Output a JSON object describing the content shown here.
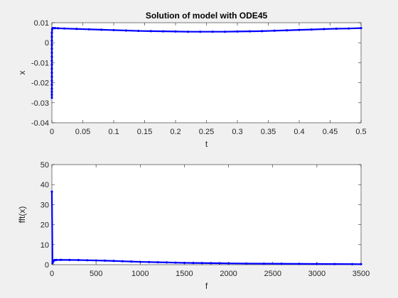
{
  "figure": {
    "background": "#f0f0f0",
    "axes_background": "#ffffff",
    "line_color": "#0000ff"
  },
  "chart_data": [
    {
      "type": "line",
      "title": "Solution of model with ODE45",
      "xlabel": "t",
      "ylabel": "x",
      "xlim": [
        0,
        0.5
      ],
      "ylim": [
        -0.04,
        0.01
      ],
      "xticks": [
        0,
        0.05,
        0.1,
        0.15,
        0.2,
        0.25,
        0.3,
        0.35,
        0.4,
        0.45,
        0.5
      ],
      "xticklabels": [
        "0",
        "0.05",
        "0.1",
        "0.15",
        "0.2",
        "0.25",
        "0.3",
        "0.35",
        "0.4",
        "0.45",
        "0.5"
      ],
      "yticks": [
        -0.04,
        -0.03,
        -0.02,
        -0.01,
        0,
        0.01
      ],
      "yticklabels": [
        "-0.04",
        "-0.03",
        "-0.02",
        "-0.01",
        "0",
        "0.01"
      ],
      "grid": false,
      "series": [
        {
          "marker": "dot",
          "x": [
            0,
            0,
            0,
            0,
            0,
            0,
            0,
            0,
            0,
            0,
            0,
            0,
            0,
            0,
            0,
            0,
            0,
            0,
            0.0005,
            0.001,
            0.002,
            0.005,
            0.01,
            0.02,
            0.04,
            0.06,
            0.08,
            0.1,
            0.12,
            0.14,
            0.16,
            0.18,
            0.2,
            0.22,
            0.24,
            0.26,
            0.28,
            0.3,
            0.32,
            0.34,
            0.36,
            0.38,
            0.4,
            0.42,
            0.44,
            0.46,
            0.48,
            0.5
          ],
          "y": [
            -0.0275,
            -0.026,
            -0.0245,
            -0.023,
            -0.021,
            -0.019,
            -0.017,
            -0.015,
            -0.013,
            -0.011,
            -0.009,
            -0.007,
            -0.005,
            -0.003,
            -0.001,
            0.001,
            0.003,
            0.005,
            0.0068,
            0.0072,
            0.0073,
            0.0073,
            0.0072,
            0.0071,
            0.0069,
            0.0067,
            0.0065,
            0.0063,
            0.0061,
            0.0059,
            0.0058,
            0.0057,
            0.0056,
            0.0055,
            0.0055,
            0.0055,
            0.0055,
            0.0056,
            0.0057,
            0.0058,
            0.006,
            0.0062,
            0.0064,
            0.0066,
            0.0068,
            0.007,
            0.0071,
            0.0073
          ]
        }
      ]
    },
    {
      "type": "line",
      "title": "",
      "xlabel": "f",
      "ylabel": "fft(x)",
      "xlim": [
        0,
        3500
      ],
      "ylim": [
        0,
        50
      ],
      "xticks": [
        0,
        500,
        1000,
        1500,
        2000,
        2500,
        3000,
        3500
      ],
      "xticklabels": [
        "0",
        "500",
        "1000",
        "1500",
        "2000",
        "2500",
        "3000",
        "3500"
      ],
      "yticks": [
        0,
        10,
        20,
        30,
        40,
        50
      ],
      "yticklabels": [
        "0",
        "10",
        "20",
        "30",
        "40",
        "50"
      ],
      "grid": false,
      "series": [
        {
          "marker": "dot",
          "x": [
            0,
            7,
            14,
            21,
            28,
            35,
            50,
            100,
            200,
            300,
            400,
            500,
            600,
            700,
            800,
            900,
            1000,
            1100,
            1200,
            1300,
            1400,
            1500,
            1600,
            1700,
            1800,
            1900,
            2000,
            2200,
            2400,
            2600,
            2800,
            3000,
            3200,
            3400,
            3500
          ],
          "y": [
            36.5,
            0.8,
            1.5,
            2.0,
            2.2,
            2.3,
            2.35,
            2.4,
            2.35,
            2.3,
            2.2,
            2.1,
            2.0,
            1.85,
            1.7,
            1.55,
            1.4,
            1.3,
            1.2,
            1.1,
            1.0,
            0.9,
            0.85,
            0.8,
            0.75,
            0.7,
            0.65,
            0.55,
            0.5,
            0.45,
            0.4,
            0.35,
            0.3,
            0.28,
            0.25
          ]
        }
      ]
    }
  ]
}
